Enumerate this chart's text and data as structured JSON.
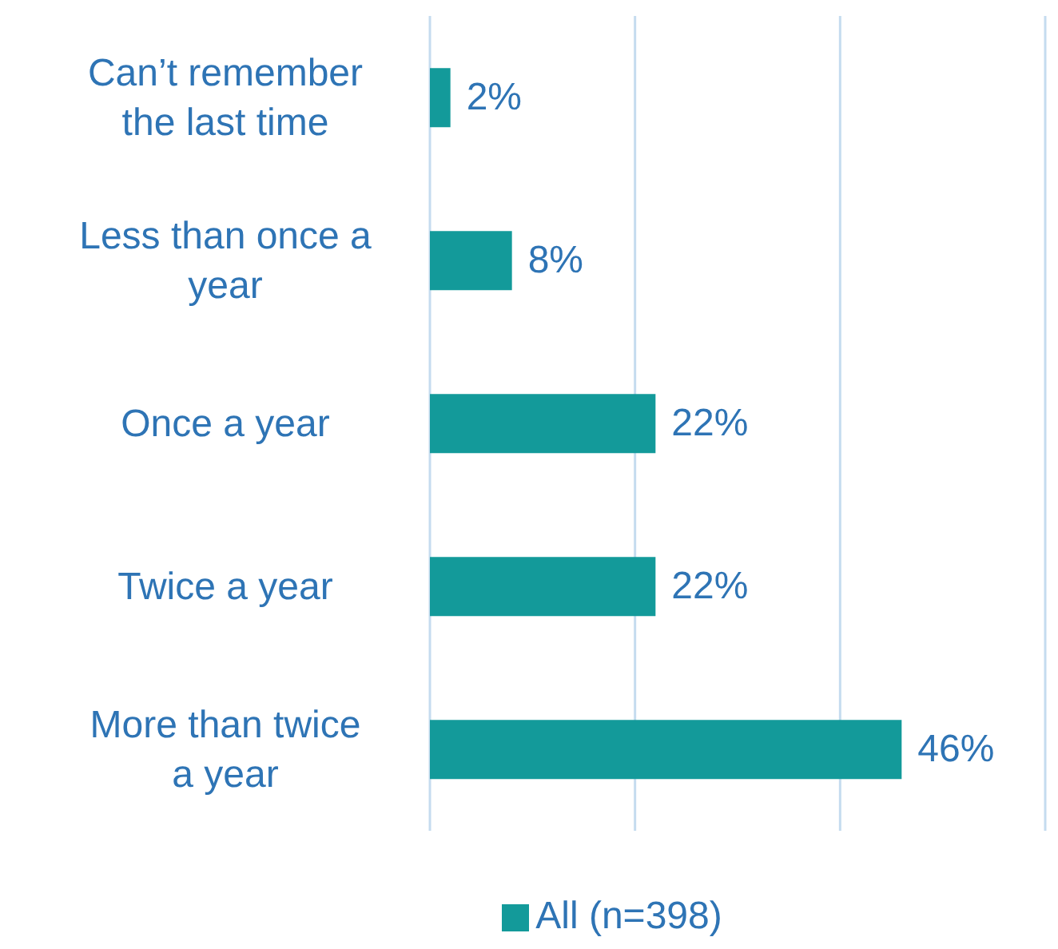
{
  "chart_data": {
    "type": "bar",
    "orientation": "horizontal",
    "categories": [
      "Can’t remember the last time",
      "Less than once a year",
      "Once a year",
      "Twice a year",
      "More than twice a year"
    ],
    "series": [
      {
        "name": "All (n=398)",
        "color": "#139a9a",
        "values": [
          2,
          8,
          22,
          22,
          46
        ],
        "value_labels": [
          "2%",
          "8%",
          "22%",
          "22%",
          "46%"
        ]
      }
    ],
    "xlim": [
      0,
      60
    ],
    "xticks": [
      {
        "value": 0,
        "label": null
      },
      {
        "value": 20,
        "label": null
      },
      {
        "value": 40,
        "label": null
      },
      {
        "value": 60,
        "label": null
      }
    ],
    "tick_labels": "y",
    "grid": "x",
    "legend": "bottom"
  }
}
